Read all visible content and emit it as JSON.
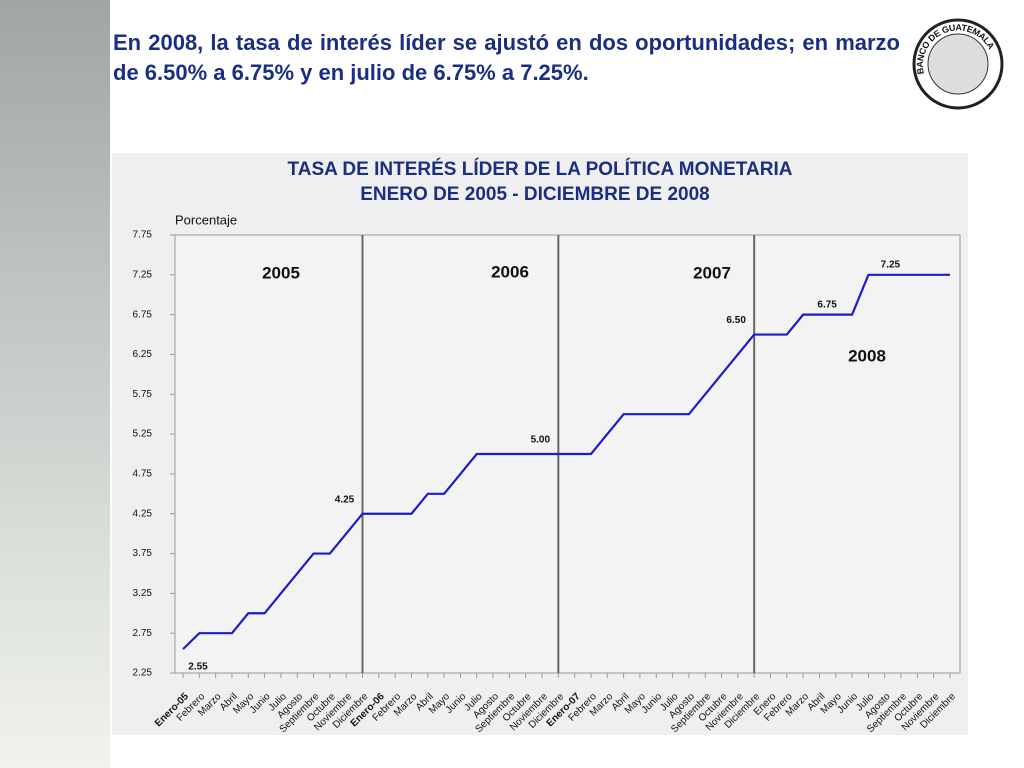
{
  "slide": {
    "text": "En 2008, la tasa de interés líder se ajustó en dos oportunidades; en marzo de 6.50% a 6.75% y en julio de 6.75% a 7.25%.",
    "logo_text": "BANCO DE GUATEMALA"
  },
  "chart_data": {
    "type": "line",
    "title": "TASA DE INTERÉS LÍDER  DE LA POLÍTICA MONETARIA",
    "subtitle": "ENERO DE 2005  -  DICIEMBRE DE 2008",
    "y_label": "Porcentaje",
    "annotations": [
      "2005",
      "2006",
      "2007",
      "2008"
    ],
    "categories": [
      "Enero-05",
      "Febrero",
      "Marzo",
      "Abril",
      "Mayo",
      "Junio",
      "Julio",
      "Agosto",
      "Septiembre",
      "Octubre",
      "Noviembre",
      "Diciembre",
      "Enero-06",
      "Febrero",
      "Marzo",
      "Abril",
      "Mayo",
      "Junio",
      "Julio",
      "Agosto",
      "Septiembre",
      "Octubre",
      "Noviembre",
      "Diciembre",
      "Enero-07",
      "Febrero",
      "Marzo",
      "Abril",
      "Mayo",
      "Junio",
      "Julio",
      "Agosto",
      "Septiembre",
      "Octubre",
      "Noviembre",
      "Diciembre",
      "Enero",
      "Febrero",
      "Marzo",
      "Abril",
      "Mayo",
      "Junio",
      "Julio",
      "Agosto",
      "Septiembre",
      "Octubre",
      "Noviembre",
      "Diciembre"
    ],
    "values": [
      2.55,
      2.75,
      2.75,
      2.75,
      3.0,
      3.0,
      3.25,
      3.5,
      3.75,
      3.75,
      4.0,
      4.25,
      4.25,
      4.25,
      4.25,
      4.5,
      4.5,
      4.75,
      5.0,
      5.0,
      5.0,
      5.0,
      5.0,
      5.0,
      5.0,
      5.0,
      5.25,
      5.5,
      5.5,
      5.5,
      5.5,
      5.5,
      5.75,
      6.0,
      6.25,
      6.5,
      6.5,
      6.5,
      6.75,
      6.75,
      6.75,
      6.75,
      7.25,
      7.25,
      7.25,
      7.25,
      7.25,
      7.25
    ],
    "value_labels": [
      "2.55",
      null,
      null,
      null,
      null,
      null,
      null,
      null,
      null,
      null,
      null,
      "4.25",
      null,
      null,
      null,
      null,
      null,
      null,
      null,
      null,
      null,
      null,
      null,
      "5.00",
      null,
      null,
      null,
      null,
      null,
      null,
      null,
      null,
      null,
      null,
      null,
      "6.50",
      null,
      null,
      "6.75",
      null,
      null,
      null,
      "7.25",
      null,
      null,
      null,
      null,
      null
    ],
    "color": "#1c1cc8",
    "ylim": [
      2.25,
      7.75
    ],
    "yticks": [
      2.25,
      2.75,
      3.25,
      3.75,
      4.25,
      4.75,
      5.25,
      5.75,
      6.25,
      6.75,
      7.25,
      7.75
    ]
  }
}
